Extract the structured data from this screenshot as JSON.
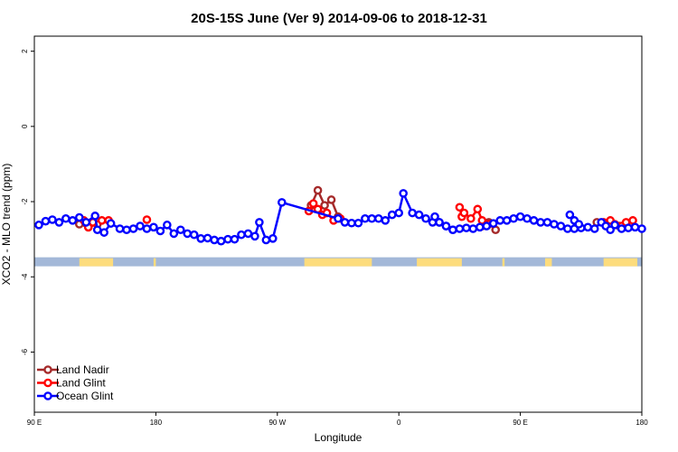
{
  "chart_data": {
    "type": "line",
    "title": "20S-15S June (Ver 9)   2014-09-06 to 2018-12-31",
    "xlabel": "Longitude",
    "ylabel": "XCO2 - MLO trend (ppm)",
    "xlim": [
      -90,
      180
    ],
    "ylim": [
      -7.6,
      2.4
    ],
    "x_ticks": [
      {
        "value": -90,
        "label": "90 E"
      },
      {
        "value": -36,
        "label": "180"
      },
      {
        "value": 18,
        "label": "90 W"
      },
      {
        "value": 72,
        "label": "0"
      },
      {
        "value": 126,
        "label": "90 E"
      },
      {
        "value": 180,
        "label": "180"
      }
    ],
    "y_ticks": [
      {
        "value": 2,
        "label": "2"
      },
      {
        "value": 0,
        "label": "0"
      },
      {
        "value": -2,
        "label": "-2"
      },
      {
        "value": -4,
        "label": "-4"
      },
      {
        "value": -6,
        "label": "-6"
      }
    ],
    "legend_position": "bottom-left",
    "surface_band": {
      "y_top": -3.48,
      "y_bottom": -3.72,
      "ocean_color": "#a3b8d8",
      "land_color": "#fddc7d",
      "land_ranges": [
        [
          -70,
          -55
        ],
        [
          -37,
          -36
        ],
        [
          30,
          60
        ],
        [
          80,
          100
        ],
        [
          118,
          119
        ],
        [
          137,
          140
        ],
        [
          163,
          178
        ]
      ]
    },
    "series": [
      {
        "name": "Land Nadir",
        "color": "#a52a2a",
        "segments": [
          [
            [
              -70,
              -2.6
            ],
            [
              -66,
              -2.68
            ],
            [
              -62,
              -2.6
            ]
          ],
          [
            [
              33,
              -2.1
            ],
            [
              36,
              -1.7
            ],
            [
              39,
              -2.1
            ],
            [
              42,
              -1.95
            ],
            [
              45,
              -2.4
            ]
          ],
          [
            [
              109,
              -2.65
            ],
            [
              112,
              -2.55
            ],
            [
              115,
              -2.75
            ]
          ],
          [
            [
              160,
              -2.55
            ],
            [
              166,
              -2.6
            ],
            [
              170,
              -2.65
            ]
          ]
        ]
      },
      {
        "name": "Land Glint",
        "color": "#ff0000",
        "segments": [
          [
            [
              -68,
              -2.5
            ],
            [
              -66,
              -2.68
            ],
            [
              -64,
              -2.55
            ],
            [
              -60,
              -2.5
            ],
            [
              -57,
              -2.5
            ]
          ],
          [
            [
              -40,
              -2.48
            ]
          ],
          [
            [
              32,
              -2.25
            ],
            [
              34,
              -2.05
            ],
            [
              36,
              -2.2
            ],
            [
              38,
              -2.35
            ],
            [
              40,
              -2.3
            ],
            [
              43,
              -2.5
            ],
            [
              46,
              -2.45
            ]
          ],
          [
            [
              99,
              -2.15
            ],
            [
              100,
              -2.4
            ],
            [
              101,
              -2.3
            ],
            [
              104,
              -2.45
            ],
            [
              107,
              -2.2
            ],
            [
              109,
              -2.5
            ],
            [
              112,
              -2.6
            ]
          ],
          [
            [
              163,
              -2.55
            ],
            [
              166,
              -2.5
            ],
            [
              168,
              -2.6
            ],
            [
              171,
              -2.65
            ],
            [
              173,
              -2.55
            ],
            [
              176,
              -2.5
            ]
          ]
        ]
      },
      {
        "name": "Ocean Glint",
        "color": "#0000ff",
        "segments": [
          [
            [
              -88,
              -2.62
            ],
            [
              -85,
              -2.52
            ],
            [
              -82,
              -2.48
            ],
            [
              -79,
              -2.55
            ],
            [
              -76,
              -2.45
            ],
            [
              -73,
              -2.5
            ],
            [
              -70,
              -2.42
            ],
            [
              -67,
              -2.55
            ],
            [
              -63,
              -2.38
            ],
            [
              -62,
              -2.75
            ],
            [
              -59,
              -2.82
            ],
            [
              -56,
              -2.58
            ],
            [
              -52,
              -2.72
            ],
            [
              -49,
              -2.75
            ],
            [
              -46,
              -2.72
            ],
            [
              -43,
              -2.65
            ],
            [
              -40,
              -2.72
            ],
            [
              -37,
              -2.68
            ],
            [
              -34,
              -2.78
            ],
            [
              -31,
              -2.62
            ],
            [
              -28,
              -2.85
            ],
            [
              -25,
              -2.75
            ],
            [
              -22,
              -2.85
            ],
            [
              -19,
              -2.88
            ],
            [
              -16,
              -2.98
            ],
            [
              -13,
              -2.97
            ],
            [
              -10,
              -3.02
            ],
            [
              -7,
              -3.05
            ],
            [
              -4,
              -3.0
            ],
            [
              -1,
              -3.0
            ],
            [
              2,
              -2.88
            ],
            [
              5,
              -2.85
            ],
            [
              8,
              -2.92
            ],
            [
              10,
              -2.55
            ],
            [
              13,
              -3.02
            ],
            [
              16,
              -2.98
            ],
            [
              20,
              -2.02
            ],
            [
              45,
              -2.45
            ],
            [
              48,
              -2.55
            ],
            [
              51,
              -2.57
            ],
            [
              54,
              -2.57
            ],
            [
              57,
              -2.45
            ],
            [
              60,
              -2.45
            ],
            [
              63,
              -2.45
            ],
            [
              66,
              -2.5
            ],
            [
              69,
              -2.35
            ],
            [
              72,
              -2.3
            ],
            [
              74,
              -1.78
            ],
            [
              78,
              -2.3
            ],
            [
              81,
              -2.35
            ],
            [
              84,
              -2.45
            ],
            [
              87,
              -2.55
            ],
            [
              90,
              -2.55
            ],
            [
              93,
              -2.65
            ],
            [
              96,
              -2.75
            ],
            [
              99,
              -2.72
            ],
            [
              102,
              -2.7
            ],
            [
              105,
              -2.72
            ],
            [
              108,
              -2.68
            ],
            [
              111,
              -2.65
            ],
            [
              114,
              -2.58
            ],
            [
              117,
              -2.5
            ],
            [
              120,
              -2.5
            ],
            [
              123,
              -2.45
            ],
            [
              126,
              -2.4
            ],
            [
              129,
              -2.45
            ],
            [
              132,
              -2.5
            ],
            [
              135,
              -2.55
            ],
            [
              138,
              -2.55
            ],
            [
              141,
              -2.6
            ],
            [
              144,
              -2.65
            ],
            [
              147,
              -2.72
            ],
            [
              150,
              -2.72
            ],
            [
              153,
              -2.7
            ],
            [
              156,
              -2.68
            ],
            [
              159,
              -2.72
            ],
            [
              162,
              -2.55
            ],
            [
              164,
              -2.65
            ],
            [
              166,
              -2.75
            ],
            [
              168,
              -2.62
            ],
            [
              171,
              -2.72
            ],
            [
              174,
              -2.7
            ],
            [
              177,
              -2.68
            ],
            [
              180,
              -2.72
            ]
          ],
          [
            [
              88,
              -2.4
            ],
            [
              90,
              -2.55
            ],
            [
              93,
              -2.65
            ],
            [
              96,
              -2.75
            ]
          ],
          [
            [
              148,
              -2.35
            ],
            [
              150,
              -2.5
            ],
            [
              152,
              -2.6
            ]
          ]
        ]
      }
    ]
  }
}
